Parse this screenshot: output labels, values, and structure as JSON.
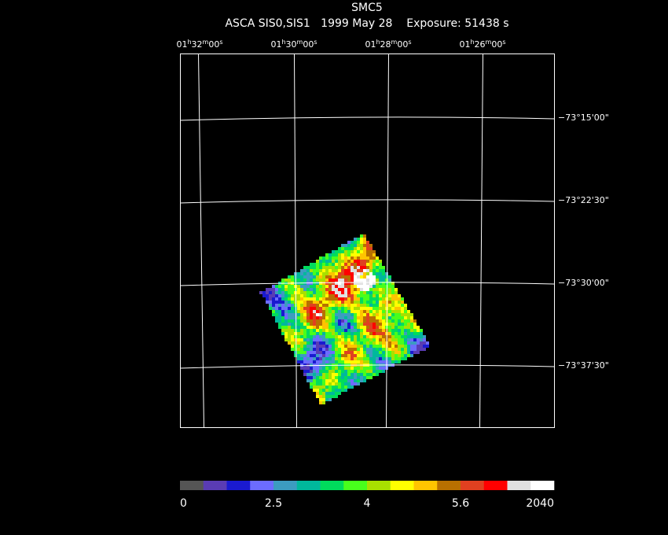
{
  "header": {
    "title": "SMC5",
    "subtitle": "ASCA SIS0,SIS1   1999 May 28    Exposure: 51438 s"
  },
  "ra_labels": [
    [
      "01",
      "h",
      "32",
      "m",
      "00",
      "s"
    ],
    [
      "01",
      "h",
      "30",
      "m",
      "00",
      "s"
    ],
    [
      "01",
      "h",
      "28",
      "m",
      "00",
      "s"
    ],
    [
      "01",
      "h",
      "26",
      "m",
      "00",
      "s"
    ]
  ],
  "dec_labels": [
    "−73°15'00\"",
    "−73°22'30\"",
    "−73°30'00\"",
    "−73°37'30\""
  ],
  "colorbar": {
    "colors": [
      "#555555",
      "#5a3cb4",
      "#1a1ad0",
      "#6c6cff",
      "#3c9cc0",
      "#00b89c",
      "#00dc5c",
      "#48ff1c",
      "#a8e000",
      "#ffff00",
      "#ffc400",
      "#b87000",
      "#e04020",
      "#ff0000",
      "#e0e0e0",
      "#ffffff"
    ],
    "labels": [
      "0",
      "2.5",
      "4",
      "5.6",
      "2040"
    ]
  }
}
